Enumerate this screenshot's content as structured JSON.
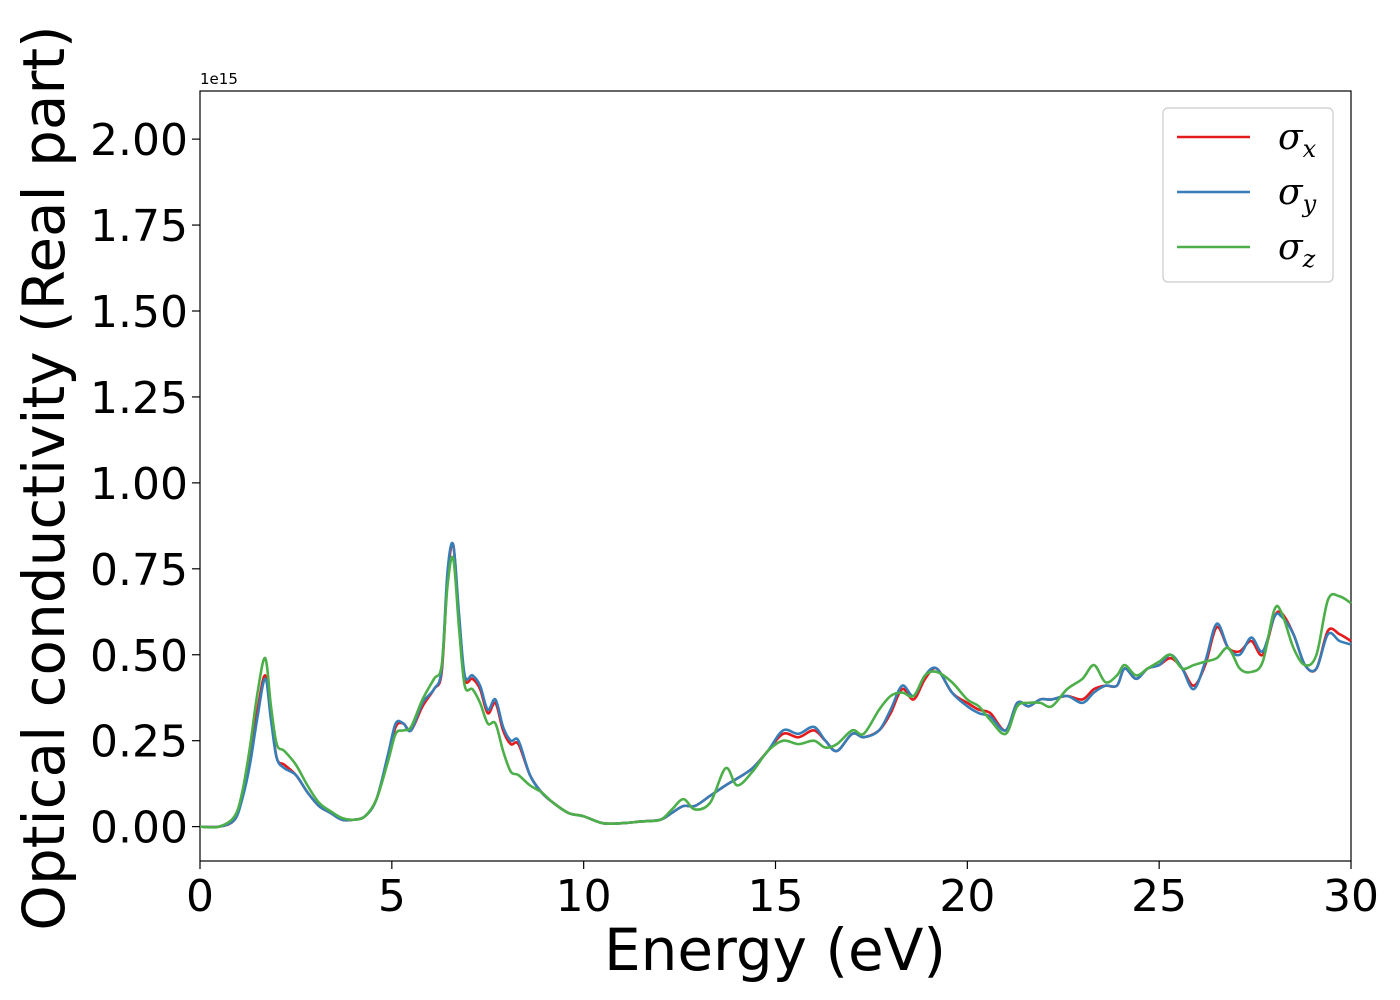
{
  "chart_data": {
    "type": "line",
    "xlabel": "Energy (eV)",
    "ylabel": "Optical conductivity (Real part)",
    "y_offset_label": "1e15",
    "xlim": [
      0,
      30
    ],
    "ylim": [
      -0.1,
      2.14
    ],
    "x_ticks": [
      "0",
      "5",
      "10",
      "15",
      "20",
      "25",
      "30"
    ],
    "y_ticks": [
      "0.00",
      "0.25",
      "0.50",
      "0.75",
      "1.00",
      "1.25",
      "1.50",
      "1.75",
      "2.00"
    ],
    "legend_position": "top-right",
    "series": [
      {
        "name": "σx",
        "symbol": "σ",
        "subscript": "x",
        "color": "#e41a1c",
        "x": [
          0,
          0.5,
          0.9,
          1.1,
          1.3,
          1.5,
          1.7,
          1.85,
          2.0,
          2.2,
          2.5,
          2.8,
          3.1,
          3.4,
          3.7,
          4.0,
          4.3,
          4.6,
          4.9,
          5.1,
          5.3,
          5.5,
          5.8,
          6.1,
          6.3,
          6.45,
          6.6,
          6.75,
          6.9,
          7.1,
          7.3,
          7.5,
          7.7,
          7.9,
          8.1,
          8.3,
          8.6,
          8.9,
          9.2,
          9.6,
          10.0,
          10.5,
          11.0,
          11.5,
          12.0,
          12.3,
          12.6,
          12.9,
          13.3,
          13.7,
          14.0,
          14.4,
          14.8,
          15.2,
          15.6,
          16.0,
          16.3,
          16.6,
          17.0,
          17.3,
          17.7,
          18.0,
          18.3,
          18.6,
          18.9,
          19.2,
          19.6,
          20.0,
          20.3,
          20.6,
          21.0,
          21.3,
          21.6,
          21.9,
          22.2,
          22.6,
          23.0,
          23.3,
          23.6,
          23.9,
          24.1,
          24.4,
          24.7,
          25.0,
          25.3,
          25.6,
          25.9,
          26.2,
          26.5,
          26.8,
          27.1,
          27.4,
          27.7,
          28.0,
          28.2,
          28.5,
          28.8,
          29.1,
          29.4,
          29.7,
          30.0
        ],
        "values": [
          0.0,
          0.0,
          0.02,
          0.09,
          0.2,
          0.34,
          0.44,
          0.32,
          0.2,
          0.18,
          0.15,
          0.1,
          0.06,
          0.04,
          0.02,
          0.02,
          0.03,
          0.08,
          0.2,
          0.29,
          0.3,
          0.28,
          0.35,
          0.4,
          0.45,
          0.72,
          0.82,
          0.6,
          0.43,
          0.43,
          0.4,
          0.33,
          0.36,
          0.28,
          0.24,
          0.24,
          0.15,
          0.1,
          0.07,
          0.04,
          0.03,
          0.01,
          0.01,
          0.015,
          0.02,
          0.04,
          0.06,
          0.06,
          0.09,
          0.12,
          0.14,
          0.17,
          0.22,
          0.27,
          0.26,
          0.28,
          0.25,
          0.22,
          0.27,
          0.26,
          0.28,
          0.33,
          0.4,
          0.37,
          0.43,
          0.46,
          0.39,
          0.36,
          0.34,
          0.33,
          0.28,
          0.36,
          0.35,
          0.37,
          0.37,
          0.38,
          0.37,
          0.4,
          0.41,
          0.41,
          0.46,
          0.43,
          0.46,
          0.47,
          0.49,
          0.46,
          0.41,
          0.47,
          0.58,
          0.52,
          0.51,
          0.54,
          0.5,
          0.61,
          0.62,
          0.56,
          0.47,
          0.46,
          0.57,
          0.56,
          0.54
        ]
      },
      {
        "name": "σy",
        "symbol": "σ",
        "subscript": "y",
        "color": "#377eb8",
        "x": [
          0,
          0.5,
          0.9,
          1.1,
          1.3,
          1.5,
          1.7,
          1.85,
          2.0,
          2.2,
          2.5,
          2.8,
          3.1,
          3.4,
          3.7,
          4.0,
          4.3,
          4.6,
          4.9,
          5.1,
          5.3,
          5.5,
          5.8,
          6.1,
          6.3,
          6.45,
          6.6,
          6.75,
          6.9,
          7.1,
          7.3,
          7.5,
          7.7,
          7.9,
          8.1,
          8.3,
          8.6,
          8.9,
          9.2,
          9.6,
          10.0,
          10.5,
          11.0,
          11.5,
          12.0,
          12.3,
          12.6,
          12.9,
          13.3,
          13.7,
          14.0,
          14.4,
          14.8,
          15.2,
          15.6,
          16.0,
          16.3,
          16.6,
          17.0,
          17.3,
          17.7,
          18.0,
          18.3,
          18.6,
          18.9,
          19.2,
          19.6,
          20.0,
          20.3,
          20.6,
          21.0,
          21.3,
          21.6,
          21.9,
          22.2,
          22.6,
          23.0,
          23.3,
          23.6,
          23.9,
          24.1,
          24.4,
          24.7,
          25.0,
          25.3,
          25.6,
          25.9,
          26.2,
          26.5,
          26.8,
          27.1,
          27.4,
          27.7,
          28.0,
          28.2,
          28.5,
          28.8,
          29.1,
          29.4,
          29.7,
          30.0
        ],
        "values": [
          0.0,
          0.0,
          0.02,
          0.08,
          0.18,
          0.32,
          0.43,
          0.31,
          0.2,
          0.17,
          0.15,
          0.1,
          0.06,
          0.04,
          0.02,
          0.02,
          0.03,
          0.08,
          0.21,
          0.3,
          0.3,
          0.28,
          0.36,
          0.4,
          0.46,
          0.74,
          0.82,
          0.62,
          0.44,
          0.44,
          0.41,
          0.34,
          0.37,
          0.29,
          0.25,
          0.25,
          0.15,
          0.1,
          0.07,
          0.04,
          0.03,
          0.01,
          0.01,
          0.015,
          0.02,
          0.04,
          0.06,
          0.06,
          0.09,
          0.12,
          0.14,
          0.17,
          0.22,
          0.28,
          0.27,
          0.29,
          0.25,
          0.22,
          0.27,
          0.26,
          0.28,
          0.34,
          0.41,
          0.38,
          0.44,
          0.46,
          0.39,
          0.35,
          0.33,
          0.32,
          0.28,
          0.36,
          0.35,
          0.37,
          0.37,
          0.38,
          0.36,
          0.39,
          0.41,
          0.41,
          0.46,
          0.43,
          0.46,
          0.47,
          0.5,
          0.46,
          0.4,
          0.48,
          0.59,
          0.52,
          0.5,
          0.55,
          0.51,
          0.61,
          0.61,
          0.56,
          0.47,
          0.46,
          0.56,
          0.54,
          0.53
        ]
      },
      {
        "name": "σz",
        "symbol": "σ",
        "subscript": "z",
        "color": "#4daf4a",
        "x": [
          0,
          0.5,
          0.9,
          1.1,
          1.3,
          1.5,
          1.7,
          1.85,
          2.0,
          2.2,
          2.5,
          2.8,
          3.1,
          3.4,
          3.7,
          4.0,
          4.3,
          4.6,
          4.9,
          5.1,
          5.3,
          5.5,
          5.8,
          6.1,
          6.3,
          6.45,
          6.6,
          6.75,
          6.9,
          7.1,
          7.3,
          7.5,
          7.7,
          7.9,
          8.1,
          8.3,
          8.6,
          8.9,
          9.2,
          9.6,
          10.0,
          10.5,
          11.0,
          11.5,
          12.0,
          12.3,
          12.6,
          12.9,
          13.3,
          13.7,
          14.0,
          14.4,
          14.8,
          15.2,
          15.6,
          16.0,
          16.3,
          16.6,
          17.0,
          17.3,
          17.7,
          18.0,
          18.3,
          18.6,
          18.9,
          19.2,
          19.6,
          20.0,
          20.3,
          20.6,
          21.0,
          21.3,
          21.6,
          21.9,
          22.2,
          22.6,
          23.0,
          23.3,
          23.6,
          23.9,
          24.1,
          24.4,
          24.7,
          25.0,
          25.3,
          25.6,
          25.9,
          26.2,
          26.5,
          26.8,
          27.1,
          27.4,
          27.7,
          28.0,
          28.2,
          28.5,
          28.8,
          29.1,
          29.4,
          29.7,
          30.0
        ],
        "values": [
          0.0,
          0.0,
          0.03,
          0.1,
          0.23,
          0.39,
          0.49,
          0.35,
          0.24,
          0.22,
          0.18,
          0.12,
          0.07,
          0.045,
          0.025,
          0.02,
          0.03,
          0.08,
          0.19,
          0.27,
          0.28,
          0.29,
          0.37,
          0.43,
          0.47,
          0.7,
          0.78,
          0.58,
          0.41,
          0.4,
          0.36,
          0.3,
          0.3,
          0.22,
          0.16,
          0.15,
          0.12,
          0.1,
          0.07,
          0.04,
          0.03,
          0.01,
          0.01,
          0.015,
          0.02,
          0.05,
          0.08,
          0.05,
          0.07,
          0.17,
          0.12,
          0.16,
          0.22,
          0.25,
          0.24,
          0.25,
          0.23,
          0.24,
          0.28,
          0.27,
          0.34,
          0.38,
          0.39,
          0.38,
          0.44,
          0.45,
          0.42,
          0.37,
          0.35,
          0.31,
          0.27,
          0.35,
          0.36,
          0.36,
          0.35,
          0.4,
          0.43,
          0.47,
          0.42,
          0.44,
          0.47,
          0.44,
          0.46,
          0.48,
          0.5,
          0.46,
          0.47,
          0.48,
          0.49,
          0.52,
          0.46,
          0.45,
          0.48,
          0.63,
          0.62,
          0.52,
          0.47,
          0.5,
          0.66,
          0.67,
          0.65
        ]
      }
    ]
  }
}
